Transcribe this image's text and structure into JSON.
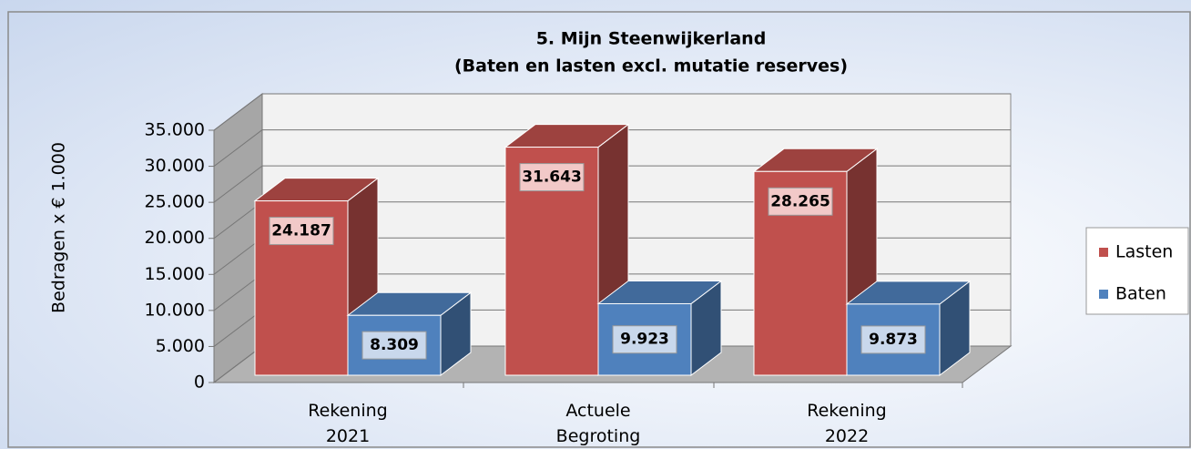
{
  "chart_data": {
    "type": "bar3d",
    "title": "5. Mijn Steenwijkerland",
    "subtitle": "(Baten en lasten excl. mutatie reserves)",
    "y_label": "Bedragen x € 1.000",
    "categories": [
      "Rekening 2021",
      "Actuele Begroting",
      "Rekening 2022"
    ],
    "series": [
      {
        "name": "Lasten",
        "color": "#c0504d",
        "values": [
          24187,
          31643,
          28265
        ],
        "value_labels": [
          "24.187",
          "31.643",
          "28.265"
        ]
      },
      {
        "name": "Baten",
        "color": "#4f81bd",
        "values": [
          8309,
          9923,
          9873
        ],
        "value_labels": [
          "8.309",
          "9.923",
          "9.873"
        ]
      }
    ],
    "ylim": [
      0,
      35000
    ],
    "yticks": [
      0,
      {
        "value": 5000,
        "label": "5.000"
      },
      {
        "value": 10000,
        "label": "10.000"
      },
      {
        "value": 15000,
        "label": "15.000"
      },
      {
        "value": 20000,
        "label": "20.000"
      },
      {
        "value": 25000,
        "label": "25.000"
      },
      {
        "value": 30000,
        "label": "30.000"
      },
      {
        "value": 35000,
        "label": "35.000"
      }
    ],
    "grid": true,
    "legend": "right"
  }
}
